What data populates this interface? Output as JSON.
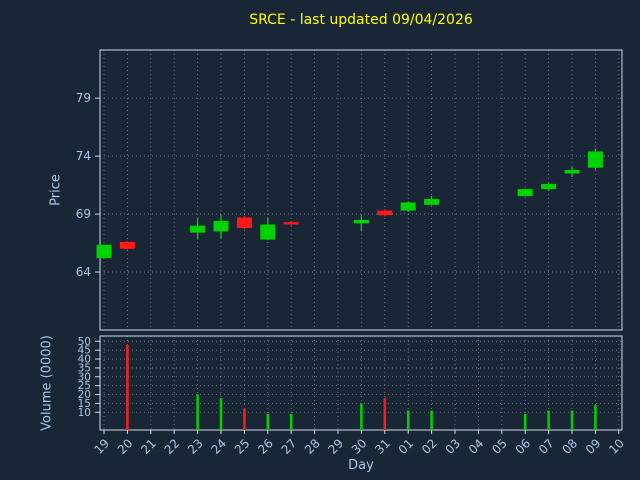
{
  "chart_data": {
    "type": "candlestick",
    "title": "SRCE - last updated 09/04/2026",
    "xlabel": "Day",
    "ylabel_price": "Price",
    "ylabel_volume": "Volume (0000)",
    "categories": [
      "19",
      "20",
      "21",
      "22",
      "23",
      "24",
      "25",
      "26",
      "27",
      "28",
      "29",
      "30",
      "31",
      "01",
      "02",
      "03",
      "04",
      "05",
      "06",
      "07",
      "08",
      "09",
      "10"
    ],
    "price_ticks": [
      64,
      69,
      74,
      79
    ],
    "price_ylim": [
      59.0,
      83.15
    ],
    "volume_ticks": [
      10,
      15,
      20,
      25,
      30,
      35,
      40,
      45,
      50
    ],
    "volume_ylim": [
      0,
      53
    ],
    "colors": {
      "up": "#00d400",
      "down": "#ff1a1a",
      "title": "#ffff00",
      "axis_text": "#a9c6e6",
      "frame": "#cfd9e4",
      "grid": "#aebccb",
      "background": "#192636"
    },
    "candles": [
      {
        "day": "19",
        "open": 65.2,
        "high": 66.35,
        "low": 65.15,
        "close": 66.35
      },
      {
        "day": "20",
        "open": 66.6,
        "high": 66.65,
        "low": 65.95,
        "close": 66.0
      },
      {
        "day": "23",
        "open": 67.4,
        "high": 68.7,
        "low": 66.8,
        "close": 68.0
      },
      {
        "day": "24",
        "open": 67.5,
        "high": 68.9,
        "low": 66.9,
        "close": 68.4
      },
      {
        "day": "25",
        "open": 68.7,
        "high": 68.85,
        "low": 67.7,
        "close": 67.8
      },
      {
        "day": "26",
        "open": 66.8,
        "high": 68.7,
        "low": 66.75,
        "close": 68.1
      },
      {
        "day": "27",
        "open": 68.3,
        "high": 68.4,
        "low": 68.0,
        "close": 68.1
      },
      {
        "day": "30",
        "open": 68.2,
        "high": 68.9,
        "low": 67.5,
        "close": 68.5
      },
      {
        "day": "31",
        "open": 69.3,
        "high": 69.4,
        "low": 68.8,
        "close": 68.9
      },
      {
        "day": "01",
        "open": 69.3,
        "high": 70.1,
        "low": 69.2,
        "close": 70.0
      },
      {
        "day": "02",
        "open": 69.8,
        "high": 70.55,
        "low": 69.75,
        "close": 70.3
      },
      {
        "day": "06",
        "open": 70.55,
        "high": 71.2,
        "low": 70.5,
        "close": 71.15
      },
      {
        "day": "07",
        "open": 71.15,
        "high": 71.65,
        "low": 71.0,
        "close": 71.6
      },
      {
        "day": "08",
        "open": 72.5,
        "high": 73.1,
        "low": 72.2,
        "close": 72.8
      },
      {
        "day": "09",
        "open": 73.0,
        "high": 74.65,
        "low": 72.85,
        "close": 74.4
      }
    ],
    "volumes": [
      {
        "day": "20",
        "value": 48,
        "dir": "down"
      },
      {
        "day": "23",
        "value": 20,
        "dir": "up"
      },
      {
        "day": "24",
        "value": 18,
        "dir": "up"
      },
      {
        "day": "25",
        "value": 12,
        "dir": "down"
      },
      {
        "day": "26",
        "value": 9,
        "dir": "up"
      },
      {
        "day": "27",
        "value": 9,
        "dir": "up"
      },
      {
        "day": "30",
        "value": 15,
        "dir": "up"
      },
      {
        "day": "31",
        "value": 18,
        "dir": "down"
      },
      {
        "day": "01",
        "value": 11,
        "dir": "up"
      },
      {
        "day": "02",
        "value": 11,
        "dir": "up"
      },
      {
        "day": "06",
        "value": 9,
        "dir": "up"
      },
      {
        "day": "07",
        "value": 11,
        "dir": "up"
      },
      {
        "day": "08",
        "value": 11,
        "dir": "up"
      },
      {
        "day": "09",
        "value": 14,
        "dir": "up"
      }
    ]
  }
}
